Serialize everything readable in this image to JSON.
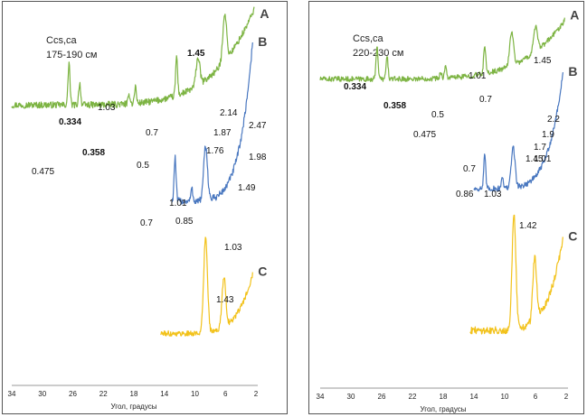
{
  "chart_data": [
    {
      "type": "line",
      "title_lines": [
        "Ccs,ca",
        "175-190 см"
      ],
      "xlabel": "Угол, градусы",
      "ylabel": "",
      "x_reversed": true,
      "xlim": [
        34,
        2
      ],
      "xticks": [
        34,
        30,
        26,
        22,
        18,
        14,
        10,
        6,
        2
      ],
      "y_axis_shown": false,
      "grid": false,
      "series": [
        {
          "name": "A",
          "color": "#7db443",
          "x_range": [
            34,
            2.2
          ],
          "baseline": 0.54,
          "peaks": [
            [
              26.5,
              0.23
            ],
            [
              25.1,
              0.12
            ],
            [
              18.6,
              0.05
            ],
            [
              17.8,
              0.09
            ],
            [
              12.4,
              0.21
            ],
            [
              9.6,
              0.15
            ],
            [
              6.1,
              0.26
            ]
          ],
          "rise": 0.52
        },
        {
          "name": "B",
          "color": "#4a78c0",
          "x_range": [
            13,
            2.4
          ],
          "baseline": 0.36,
          "peaks": [
            [
              12.6,
              0.22
            ],
            [
              10.4,
              0.06
            ],
            [
              8.6,
              0.27
            ]
          ],
          "rise": 0.82
        },
        {
          "name": "C",
          "color": "#f2c21b",
          "x_range": [
            14.5,
            2.4
          ],
          "baseline": 0.25,
          "peaks": [
            [
              8.6,
              0.62
            ],
            [
              6.2,
              0.33
            ]
          ],
          "rise": 0.4
        }
      ],
      "annotations": [
        {
          "text": "0.334",
          "x": 26.5,
          "bold": true
        },
        {
          "text": "0.358",
          "x": 25.1,
          "bold": true
        },
        {
          "text": "0.475",
          "x": 18.6,
          "bold": false
        },
        {
          "text": "0.5",
          "x": 17.8,
          "bold": false
        },
        {
          "text": "0.7",
          "x": 12.4,
          "bold": false
        },
        {
          "text": "1.03",
          "x": 9.6,
          "bold": false
        },
        {
          "text": "1.45",
          "x": 6.1,
          "bold": true
        },
        {
          "text": "2.14",
          "x": 4.2,
          "bold": false
        },
        {
          "text": "2.47",
          "x": 3.5,
          "bold": false
        },
        {
          "text": "1.87",
          "x": 4.8,
          "bold": false
        },
        {
          "text": "1.76",
          "x": 5.5,
          "bold": false
        },
        {
          "text": "1.98",
          "x": 4.5,
          "bold": false
        },
        {
          "text": "1.49",
          "x": 6.0,
          "bold": false
        },
        {
          "text": "1.01",
          "x": 8.7,
          "bold": false
        },
        {
          "text": "0.7",
          "x": 12.6,
          "bold": false
        },
        {
          "text": "0.85",
          "x": 10.4,
          "bold": false
        },
        {
          "text": "1.03",
          "x": 8.6,
          "bold": false
        },
        {
          "text": "1.43",
          "x": 6.2,
          "bold": false
        }
      ]
    },
    {
      "type": "line",
      "title_lines": [
        "Ccs,ca",
        "220-230 см"
      ],
      "xlabel": "Угол, градусы",
      "ylabel": "",
      "x_reversed": true,
      "xlim": [
        34,
        2
      ],
      "xticks": [
        34,
        30,
        26,
        22,
        18,
        14,
        10,
        6,
        2
      ],
      "y_axis_shown": false,
      "grid": false,
      "series": [
        {
          "name": "A",
          "color": "#7db443",
          "x_range": [
            34,
            2.2
          ],
          "baseline": 0.61,
          "peaks": [
            [
              26.6,
              0.23
            ],
            [
              25.3,
              0.15
            ],
            [
              18.3,
              0.04
            ],
            [
              17.7,
              0.08
            ],
            [
              12.6,
              0.2
            ],
            [
              9.1,
              0.23
            ],
            [
              6.0,
              0.17
            ]
          ],
          "rise": 0.4
        },
        {
          "name": "B",
          "color": "#4a78c0",
          "x_range": [
            14,
            2.4
          ],
          "baseline": 0.35,
          "peaks": [
            [
              12.6,
              0.2
            ],
            [
              10.3,
              0.08
            ],
            [
              8.9,
              0.25
            ]
          ],
          "rise": 0.72
        },
        {
          "name": "C",
          "color": "#f2c21b",
          "x_range": [
            14.5,
            2.4
          ],
          "baseline": 0.2,
          "peaks": [
            [
              8.8,
              0.55
            ],
            [
              6.1,
              0.3
            ]
          ],
          "rise": 0.45
        }
      ],
      "annotations": [
        {
          "text": "0.334",
          "x": 26.6,
          "bold": true
        },
        {
          "text": "0.358",
          "x": 25.3,
          "bold": true
        },
        {
          "text": "0.475",
          "x": 18.3,
          "bold": false
        },
        {
          "text": "0.5",
          "x": 17.7,
          "bold": false
        },
        {
          "text": "0.7",
          "x": 12.6,
          "bold": false
        },
        {
          "text": "1.01",
          "x": 9.1,
          "bold": false
        },
        {
          "text": "1.45",
          "x": 6.0,
          "bold": false
        },
        {
          "text": "2.2",
          "x": 4.0,
          "bold": false
        },
        {
          "text": "1.9",
          "x": 4.7,
          "bold": false
        },
        {
          "text": "1.7",
          "x": 5.3,
          "bold": false
        },
        {
          "text": "1.45",
          "x": 6.0,
          "bold": false
        },
        {
          "text": "1.01",
          "x": 8.9,
          "bold": false
        },
        {
          "text": "0.7",
          "x": 12.6,
          "bold": false
        },
        {
          "text": "0.86",
          "x": 10.3,
          "bold": false
        },
        {
          "text": "1.03",
          "x": 8.8,
          "bold": false
        },
        {
          "text": "1.42",
          "x": 6.1,
          "bold": false
        }
      ]
    }
  ]
}
